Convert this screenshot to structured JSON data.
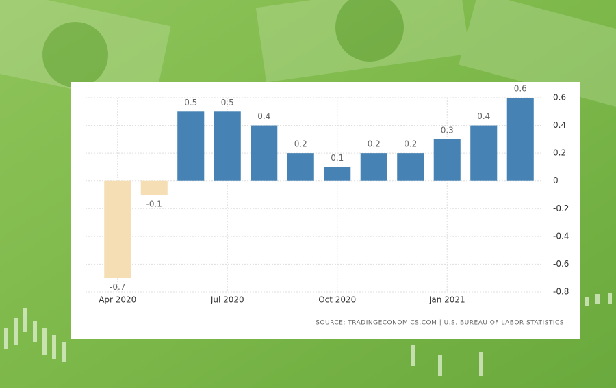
{
  "chart_data": {
    "type": "bar",
    "categories": [
      "Apr 2020",
      null,
      null,
      "Jul 2020",
      null,
      null,
      "Oct 2020",
      null,
      null,
      "Jan 2021",
      null,
      null
    ],
    "values": [
      -0.7,
      -0.1,
      0.5,
      0.5,
      0.4,
      0.2,
      0.1,
      0.2,
      0.2,
      0.3,
      0.4,
      0.6
    ],
    "color": "#4682b4",
    "negative_color": "#f5deb3",
    "ylim": [
      -0.8,
      0.6
    ],
    "yticks": [
      0.6,
      0.4,
      0.2,
      0,
      -0.2,
      -0.4,
      -0.6,
      -0.8
    ],
    "grid": true,
    "source": "SOURCE: TRADINGECONOMICS.COM | U.S. BUREAU OF LABOR STATISTICS"
  }
}
